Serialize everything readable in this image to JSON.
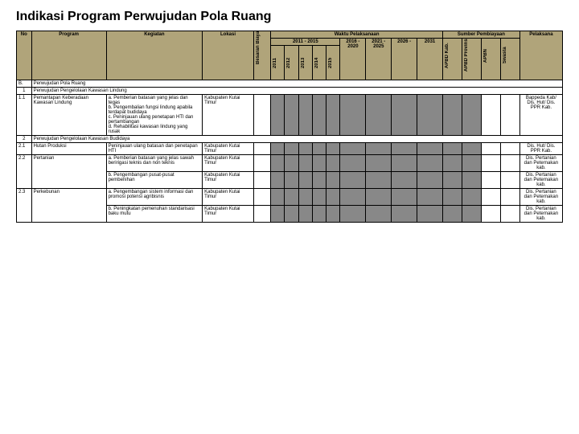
{
  "title": "Indikasi Program Perwujudan Pola Ruang",
  "headers": {
    "no": "No",
    "program": "Program",
    "kegiatan": "Kegiatan",
    "lokasi": "Lokasi",
    "besaran": "Besaran Biaya",
    "waktu": "Waktu Pelaksanaan",
    "sumber": "Sumber Pembiayaan",
    "pelaksana": "Pelaksana",
    "period1": "2011 - 2015",
    "y2011": "2011",
    "y2012": "2012",
    "y2013": "2013",
    "y2014": "2014",
    "y2015": "2015",
    "p2016": "2016 - 2020",
    "p2021": "2021 - 2025",
    "p2026": "2026 -",
    "p2031": "2031",
    "apbdkab": "APBD Kab.",
    "apbdprov": "APBD Provinsi",
    "apbn": "APBN",
    "swasta": "Swasta"
  },
  "rows": {
    "r0": {
      "no": "B.",
      "prog": "Perwujudan Pola Ruang"
    },
    "r1": {
      "no": "1",
      "prog": "Perwujudan Pengelolaan Kawasan Lindung"
    },
    "r11": {
      "no": "1.1",
      "prog": "Pemantapan Keberadaan Kawasan Lindung",
      "keg": "a. Pemberian batasan yang jelas dan tegas\nb. Pengembalian fungsi lindung apabila terdapat budidaya\nc. Peninjauan ulang penetapan HTI dan pertambangan\nd. Rehabilitasi kawasan lindung yang rusak",
      "lok": "Kabupaten Kutai Timur",
      "pel": "Bappeda Kab/ Dis. Hut/ Dis. PPR Kab."
    },
    "r2": {
      "no": "2",
      "prog": "Perwujudan Pengelolaan Kawasan Budidaya"
    },
    "r21": {
      "no": "2.1",
      "prog": "Hutan Produksi",
      "keg": "Peninjauan ulang batasan dan penetapan HTI",
      "lok": "Kabupaten Kutai Timur",
      "pel": "Dis. Hut/ Dis. PPR Kab."
    },
    "r22a": {
      "no": "2.2",
      "prog": "Pertanian",
      "keg": "a. Pemberian batasan yang jelas sawah beririgasi teknis dan non teknis",
      "lok": "Kabupaten Kutai Timur",
      "pel": "Dis. Pertanian dan Peternakan kab."
    },
    "r22b": {
      "keg": "b. Pengembangan pusat-pusat pembenihan",
      "lok": "Kabupaten Kutai Timur",
      "pel": "Dis. Pertanian dan Peternakan kab."
    },
    "r23a": {
      "no": "2.3",
      "prog": "Perkebunan",
      "keg": "a. Pengembangan sistem informasi dan promosi potensi agribisnis",
      "lok": "Kabupaten Kutai Timur",
      "pel": "Dis. Pertanian dan Peternakan kab."
    },
    "r23b": {
      "keg": "b. Peningkatan pemenuhan standarisasi baku mutu",
      "lok": "Kabupaten Kutai Timur",
      "pel": "Dis. Pertanian dan Peternakan kab."
    }
  }
}
